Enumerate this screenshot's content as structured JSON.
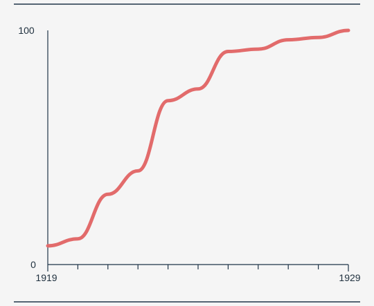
{
  "chart_data": {
    "type": "line",
    "x": [
      1919,
      1920,
      1921,
      1922,
      1923,
      1924,
      1925,
      1926,
      1927,
      1928,
      1929
    ],
    "series": [
      {
        "values": [
          8,
          11,
          30,
          40,
          70,
          75,
          91,
          92,
          96,
          97,
          100
        ]
      }
    ],
    "xlim": [
      1919,
      1929
    ],
    "ylim": [
      0,
      100
    ],
    "xticks": [
      "1919",
      "1929"
    ],
    "yticks": [
      "0",
      "100"
    ],
    "grid": false,
    "colors": {
      "line": "#e26b6b",
      "axis": "#1e3448",
      "rule": "#1e3448",
      "background": "#f5f5f5"
    }
  }
}
